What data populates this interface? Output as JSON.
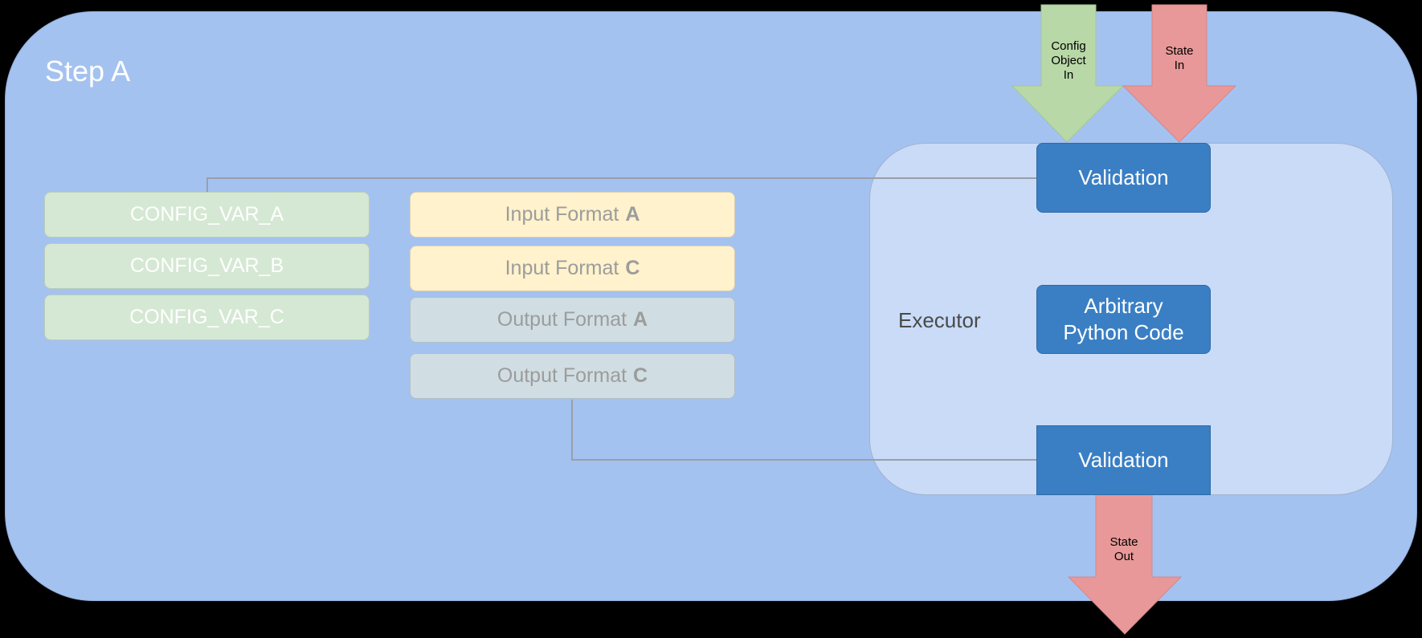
{
  "step": {
    "title": "Step A"
  },
  "executor": {
    "label": "Executor"
  },
  "config_vars": [
    "CONFIG_VAR_A",
    "CONFIG_VAR_B",
    "CONFIG_VAR_C"
  ],
  "formats": [
    {
      "prefix": "Input Format",
      "suffix": "A"
    },
    {
      "prefix": "Input Format",
      "suffix": "C"
    },
    {
      "prefix": "Output Format",
      "suffix": "A"
    },
    {
      "prefix": "Output Format",
      "suffix": "C"
    }
  ],
  "blocks": {
    "validation_top": "Validation",
    "python_line1": "Arbitrary",
    "python_line2": "Python Code",
    "validation_bottom": "Validation"
  },
  "arrows": {
    "config_in": [
      "Config",
      "Object",
      "In"
    ],
    "state_in": [
      "State",
      "In"
    ],
    "state_out": [
      "State",
      "Out"
    ]
  },
  "colors": {
    "step_bg": "#a4c2f0",
    "executor_bg": "#c9dbf7",
    "block_blue": "#3a7fc4",
    "config_green": "#d5e8d4",
    "input_yellow": "#fff2cc",
    "output_gray": "#d0dee3",
    "arrow_green": "#b9d8a8",
    "arrow_red": "#e89898"
  }
}
